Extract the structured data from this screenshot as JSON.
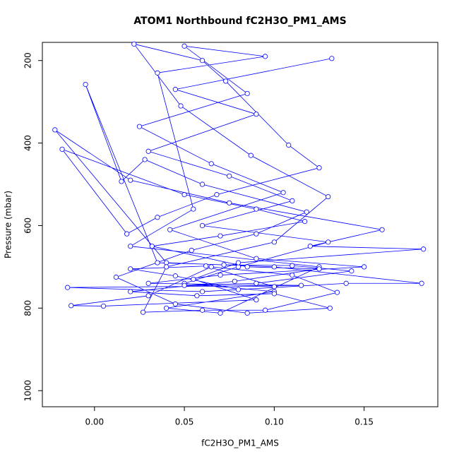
{
  "chart_data": {
    "type": "line",
    "marker": "o",
    "title": "ATOM1 Northbound fC2H3O_PM1_AMS",
    "x_label": "fC2H3O_PM1_AMS",
    "y_label": "Pressure (mbar)",
    "xlim": [
      -0.029,
      0.191
    ],
    "ylim": [
      1039,
      156
    ],
    "xticks": [
      {
        "value": 0,
        "label": "0.00"
      },
      0.05,
      {
        "value": 0.1,
        "label": "0.10"
      },
      0.15
    ],
    "yticks": [
      200,
      400,
      600,
      800,
      1000
    ],
    "series": [
      {
        "color": "#0000ff",
        "x": [
          0.132,
          0.045,
          0.09,
          0.03,
          0.075,
          0.11,
          0.06,
          0.13,
          0.08,
          0.05,
          0.1,
          0.04,
          0.07,
          0.125,
          0.02,
          0.055,
          0.035,
          0.095,
          0.05,
          0.085,
          0.025,
          0.065,
          0.105,
          0.042,
          0.09,
          0.15,
          0.07,
          0.03,
          0.115,
          -0.015,
          0.06,
          0.14,
          0.182,
          0.1,
          0.04,
          -0.022,
          0.02,
          0.075,
          0.16,
          0.12,
          0.183,
          0.08,
          0.055,
          0.09,
          0.005,
          -0.013,
          0.03,
          0.065,
          0.11,
          0.135,
          0.095,
          0.06,
          0.027,
          0.04,
          0.1,
          0.13,
          0.087,
          0.048,
          0.022,
          0.06,
          0.073,
          0.108,
          0.125,
          0.068,
          0.035,
          0.018,
          -0.018,
          0.05,
          0.09,
          0.117,
          0.07,
          0.032,
          0.085,
          0.125,
          0.078,
          0.02,
          0.057,
          0.1,
          0.131,
          0.085,
          0.045,
          0.012,
          0.054,
          0.09,
          0.118,
          0.06,
          0.028,
          0.015,
          -0.005,
          0.035,
          0.072,
          0.11,
          0.143,
          0.09,
          0.05,
          0.1,
          0.062,
          0.02,
          0.045,
          0.08
        ],
        "values": [
          195,
          270,
          330,
          420,
          480,
          540,
          600,
          640,
          700,
          740,
          760,
          800,
          812,
          700,
          650,
          560,
          230,
          190,
          165,
          280,
          360,
          450,
          520,
          610,
          680,
          700,
          720,
          740,
          745,
          750,
          760,
          740,
          740,
          700,
          690,
          368,
          490,
          545,
          610,
          650,
          657,
          690,
          730,
          780,
          795,
          794,
          770,
          700,
          720,
          762,
          805,
          805,
          810,
          700,
          640,
          530,
          430,
          310,
          160,
          200,
          250,
          405,
          460,
          525,
          580,
          620,
          415,
          525,
          560,
          590,
          625,
          650,
          700,
          705,
          735,
          760,
          770,
          765,
          800,
          812,
          790,
          725,
          660,
          620,
          567,
          500,
          440,
          493,
          258,
          690,
          695,
          697,
          710,
          740,
          745,
          748,
          698,
          705,
          722,
          755
        ]
      }
    ]
  }
}
